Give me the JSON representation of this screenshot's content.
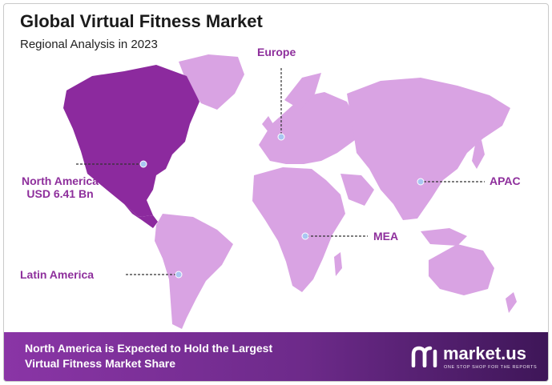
{
  "header": {
    "title": "Global Virtual Fitness Market",
    "subtitle": "Regional Analysis in 2023"
  },
  "colors": {
    "highlight_region": "#8c2a9e",
    "other_regions": "#d9a3e3",
    "label": "#8e2f9c",
    "banner_start": "#8a35a6",
    "banner_end": "#3e1658"
  },
  "regions": {
    "europe": {
      "label": "Europe"
    },
    "north_america": {
      "label": "North America",
      "value": "USD 6.41 Bn",
      "highlighted": true
    },
    "apac": {
      "label": "APAC"
    },
    "mea": {
      "label": "MEA"
    },
    "latin_america": {
      "label": "Latin America"
    }
  },
  "banner": {
    "line1": "North America is Expected to Hold the Largest",
    "line2": "Virtual Fitness Market Share"
  },
  "brand": {
    "name": "market.us",
    "tagline": "ONE STOP SHOP FOR THE REPORTS",
    "icon": "market-us-logo-icon"
  }
}
